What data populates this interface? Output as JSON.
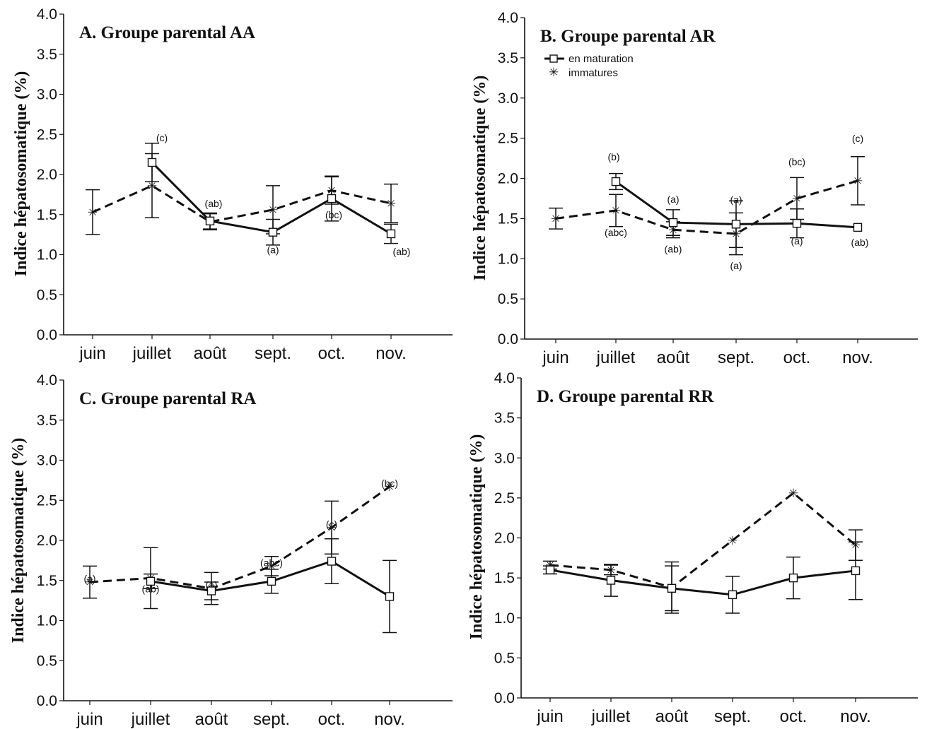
{
  "chart_data": [
    {
      "type": "line",
      "title": "A. Groupe parental AA",
      "ylabel": "Indice hépatosomatique (%)",
      "xlabel": "",
      "categories": [
        "juin",
        "juillet",
        "août",
        "sept.",
        "oct.",
        "nov."
      ],
      "ylim": [
        0.0,
        4.0
      ],
      "yticks": [
        "0.0",
        "0.5",
        "1.0",
        "1.5",
        "2.0",
        "2.5",
        "3.0",
        "3.5",
        "4.0"
      ],
      "legend": null,
      "series": [
        {
          "style": "solid-square",
          "values": [
            null,
            2.15,
            1.42,
            1.28,
            1.7,
            1.26
          ],
          "errors": [
            null,
            0.24,
            0.1,
            0.16,
            0.28,
            0.12
          ],
          "labels": [
            null,
            "(c)",
            "(ab)",
            "(a)",
            "(bc)",
            "(ab)"
          ]
        },
        {
          "style": "dashed-star",
          "values": [
            1.53,
            1.86,
            1.41,
            1.56,
            1.8,
            1.64
          ],
          "errors": [
            0.28,
            0.4,
            0.1,
            0.3,
            0.17,
            0.24
          ],
          "labels": [
            null,
            null,
            null,
            null,
            null,
            null
          ]
        }
      ]
    },
    {
      "type": "line",
      "title": "B. Groupe parental AR",
      "ylabel": "Indice hépatosomatique (%)",
      "xlabel": "",
      "categories": [
        "juin",
        "juillet",
        "août",
        "sept.",
        "oct.",
        "nov."
      ],
      "ylim": [
        0.0,
        4.0
      ],
      "yticks": [
        "0.0",
        "0.5",
        "1.0",
        "1.5",
        "2.0",
        "2.5",
        "3.0",
        "3.5",
        "4.0"
      ],
      "legend": {
        "placement": "top-left",
        "entries": [
          "en maturation",
          "immatures"
        ]
      },
      "series": [
        {
          "name": "en maturation",
          "style": "solid-square",
          "values": [
            null,
            1.96,
            1.45,
            1.43,
            1.44,
            1.39
          ],
          "errors": [
            null,
            0.1,
            0.16,
            0.29,
            0.18,
            0.0
          ],
          "labels": [
            null,
            "(b)",
            "(a)",
            "(a)",
            "(a)",
            "(ab)"
          ]
        },
        {
          "name": "immatures",
          "style": "dashed-star",
          "values": [
            1.5,
            1.6,
            1.36,
            1.31,
            1.75,
            1.97
          ],
          "errors": [
            0.13,
            0.2,
            0.1,
            0.26,
            0.26,
            0.3
          ],
          "labels": [
            null,
            "(abc)",
            "(ab)",
            "(a)",
            "(bc)",
            "(c)"
          ]
        }
      ]
    },
    {
      "type": "line",
      "title": "C. Groupe parental RA",
      "ylabel": "Indice hépatosomatique (%)",
      "xlabel": "",
      "categories": [
        "juin",
        "juillet",
        "août",
        "sept.",
        "oct.",
        "nov."
      ],
      "ylim": [
        0.0,
        4.0
      ],
      "yticks": [
        "0.0",
        "0.5",
        "1.0",
        "1.5",
        "2.0",
        "2.5",
        "3.0",
        "3.5",
        "4.0"
      ],
      "legend": null,
      "series": [
        {
          "style": "solid-square",
          "values": [
            null,
            1.49,
            1.37,
            1.49,
            1.74,
            1.3
          ],
          "errors": [
            null,
            0.09,
            0.11,
            0.15,
            0.28,
            0.45
          ],
          "labels": [
            null,
            null,
            null,
            null,
            null,
            null
          ]
        },
        {
          "style": "dashed-star",
          "values": [
            1.48,
            1.53,
            1.4,
            1.68,
            2.16,
            2.67
          ],
          "errors": [
            0.2,
            0.38,
            0.2,
            0.12,
            0.33,
            0.0
          ],
          "labels": [
            "(a)",
            "(ab)",
            "(a)",
            "(abc)",
            "(c)",
            "(bc)"
          ]
        }
      ]
    },
    {
      "type": "line",
      "title": "D. Groupe parental RR",
      "ylabel": "Indice hépatosomatique (%)",
      "xlabel": "",
      "categories": [
        "juin",
        "juillet",
        "août",
        "sept.",
        "oct.",
        "nov."
      ],
      "ylim": [
        0.0,
        4.0
      ],
      "yticks": [
        "0.0",
        "0.5",
        "1.0",
        "1.5",
        "2.0",
        "2.5",
        "3.0",
        "3.5",
        "4.0"
      ],
      "legend": null,
      "series": [
        {
          "style": "solid-square",
          "values": [
            1.6,
            1.47,
            1.37,
            1.29,
            1.5,
            1.59
          ],
          "errors": [
            0.05,
            0.2,
            0.28,
            0.23,
            0.26,
            0.36
          ],
          "labels": [
            null,
            null,
            null,
            null,
            null,
            null
          ]
        },
        {
          "style": "dashed-star",
          "values": [
            1.66,
            1.6,
            1.38,
            1.97,
            2.56,
            1.91
          ],
          "errors": [
            0.05,
            0.06,
            0.32,
            0.0,
            0.0,
            0.19
          ],
          "labels": [
            null,
            null,
            null,
            null,
            null,
            null
          ]
        }
      ]
    }
  ]
}
